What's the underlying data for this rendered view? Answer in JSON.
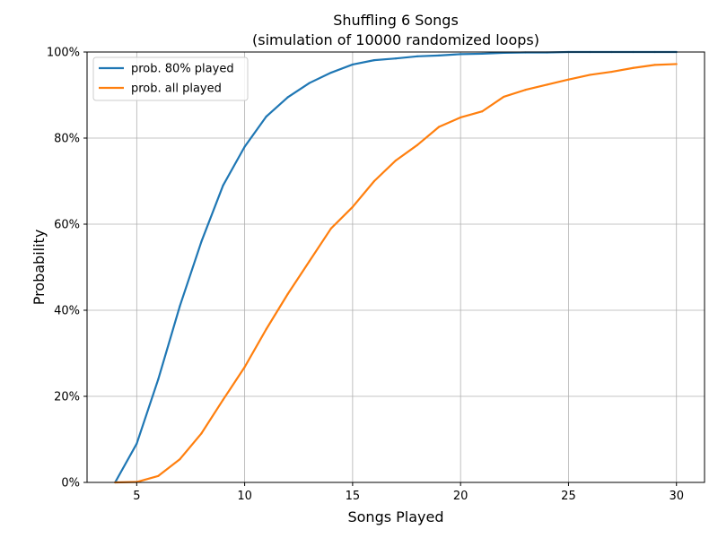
{
  "chart_data": {
    "type": "line",
    "title": "Shuffling 6 Songs",
    "subtitle": "(simulation of 10000 randomized loops)",
    "xlabel": "Songs Played",
    "ylabel": "Probability",
    "xlim": [
      2.7,
      31.3
    ],
    "ylim": [
      0,
      1
    ],
    "x_ticks": [
      5,
      10,
      15,
      20,
      25,
      30
    ],
    "x_tick_labels": [
      "5",
      "10",
      "15",
      "20",
      "25",
      "30"
    ],
    "y_ticks": [
      0,
      0.2,
      0.4,
      0.6,
      0.8,
      1.0
    ],
    "y_tick_labels": [
      "0%",
      "20%",
      "40%",
      "60%",
      "80%",
      "100%"
    ],
    "grid": true,
    "legend_position": "top-left",
    "x": [
      4,
      5,
      6,
      7,
      8,
      9,
      10,
      11,
      12,
      13,
      14,
      15,
      16,
      17,
      18,
      19,
      20,
      21,
      22,
      23,
      24,
      25,
      26,
      27,
      28,
      29,
      30
    ],
    "series": [
      {
        "name": "prob. 80% played",
        "color": "#1f77b4",
        "values": [
          0.0,
          0.09,
          0.24,
          0.41,
          0.56,
          0.69,
          0.78,
          0.85,
          0.895,
          0.928,
          0.952,
          0.971,
          0.981,
          0.985,
          0.99,
          0.992,
          0.995,
          0.996,
          0.998,
          0.999,
          0.999,
          1.0,
          1.0,
          1.0,
          1.0,
          1.0,
          1.0
        ]
      },
      {
        "name": "prob. all played",
        "color": "#ff7f0e",
        "values": [
          0.0,
          0.001,
          0.015,
          0.054,
          0.114,
          0.192,
          0.268,
          0.356,
          0.438,
          0.514,
          0.59,
          0.64,
          0.7,
          0.748,
          0.784,
          0.826,
          0.848,
          0.862,
          0.896,
          0.912,
          0.924,
          0.936,
          0.947,
          0.954,
          0.963,
          0.97,
          0.972
        ]
      }
    ]
  }
}
